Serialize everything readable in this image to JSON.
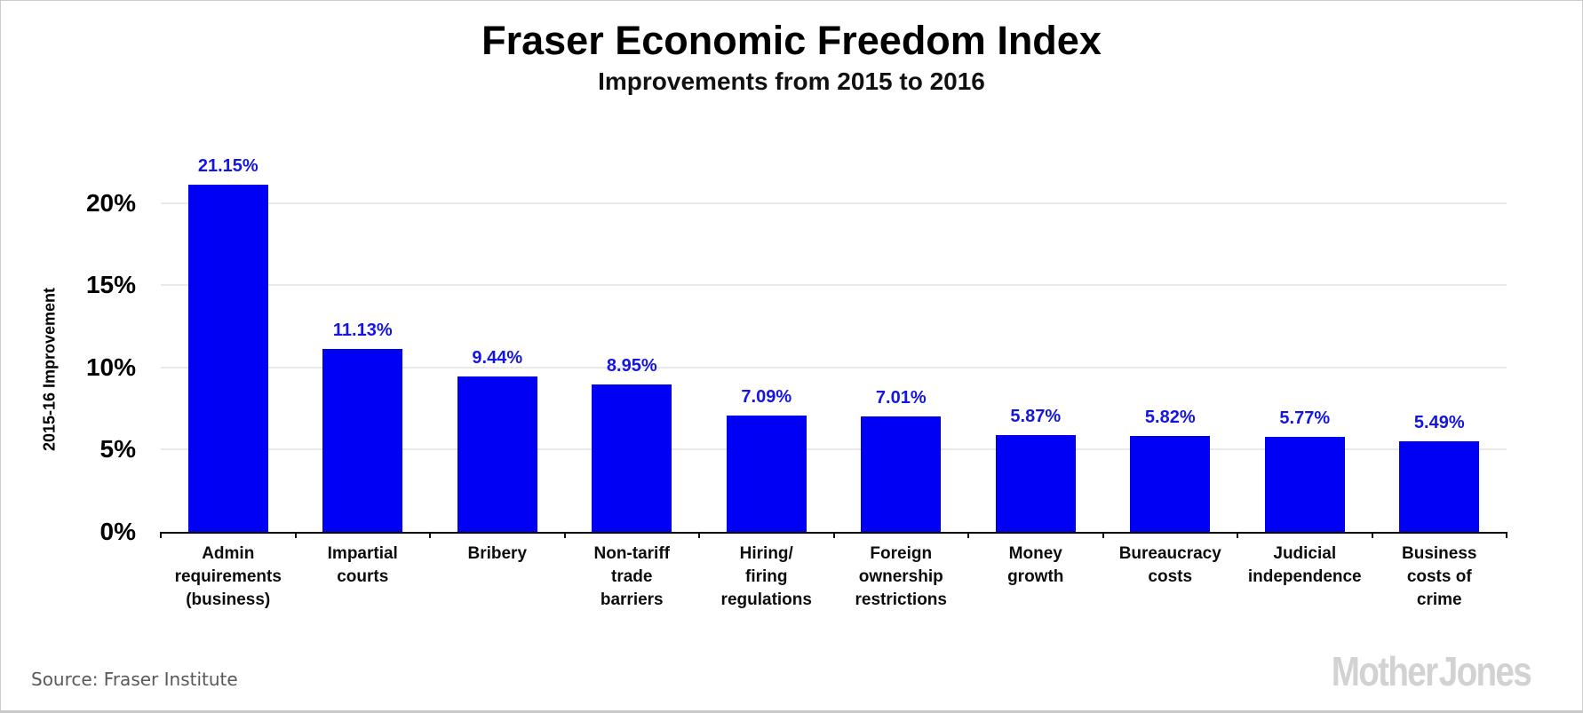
{
  "chart_data": {
    "type": "bar",
    "title": "Fraser Economic Freedom Index",
    "subtitle": "Improvements from 2015 to 2016",
    "ylabel": "2015-16 Improvement",
    "xlabel": "",
    "categories": [
      "Admin requirements (business)",
      "Impartial courts",
      "Bribery",
      "Non-tariff trade barriers",
      "Hiring/ firing regulations",
      "Foreign ownership restrictions",
      "Money growth",
      "Bureaucracy costs",
      "Judicial independence",
      "Business costs of crime"
    ],
    "category_label_lines": [
      [
        "Admin",
        "requirements",
        "(business)"
      ],
      [
        "Impartial",
        "courts"
      ],
      [
        "Bribery"
      ],
      [
        "Non-tariff",
        "trade",
        "barriers"
      ],
      [
        "Hiring/",
        "firing",
        "regulations"
      ],
      [
        "Foreign",
        "ownership",
        "restrictions"
      ],
      [
        "Money",
        "growth"
      ],
      [
        "Bureaucracy",
        "costs"
      ],
      [
        "Judicial",
        "independence"
      ],
      [
        "Business",
        "costs of",
        "crime"
      ]
    ],
    "values": [
      21.15,
      11.13,
      9.44,
      8.95,
      7.09,
      7.01,
      5.87,
      5.82,
      5.77,
      5.49
    ],
    "value_labels": [
      "21.15%",
      "11.13%",
      "9.44%",
      "8.95%",
      "7.09%",
      "7.01%",
      "5.87%",
      "5.82%",
      "5.77%",
      "5.49%"
    ],
    "ytick_values": [
      0,
      5,
      10,
      15,
      20
    ],
    "ytick_labels": [
      "0%",
      "5%",
      "10%",
      "15%",
      "20%"
    ],
    "ylim": [
      0,
      24.75
    ],
    "grid": "horizontal-lines-at-yticks",
    "legend": "none",
    "bar_color": "#0000f5",
    "value_label_color": "#1515e0"
  },
  "footer": {
    "source": "Source: Fraser Institute",
    "brand": "Mother Jones"
  }
}
